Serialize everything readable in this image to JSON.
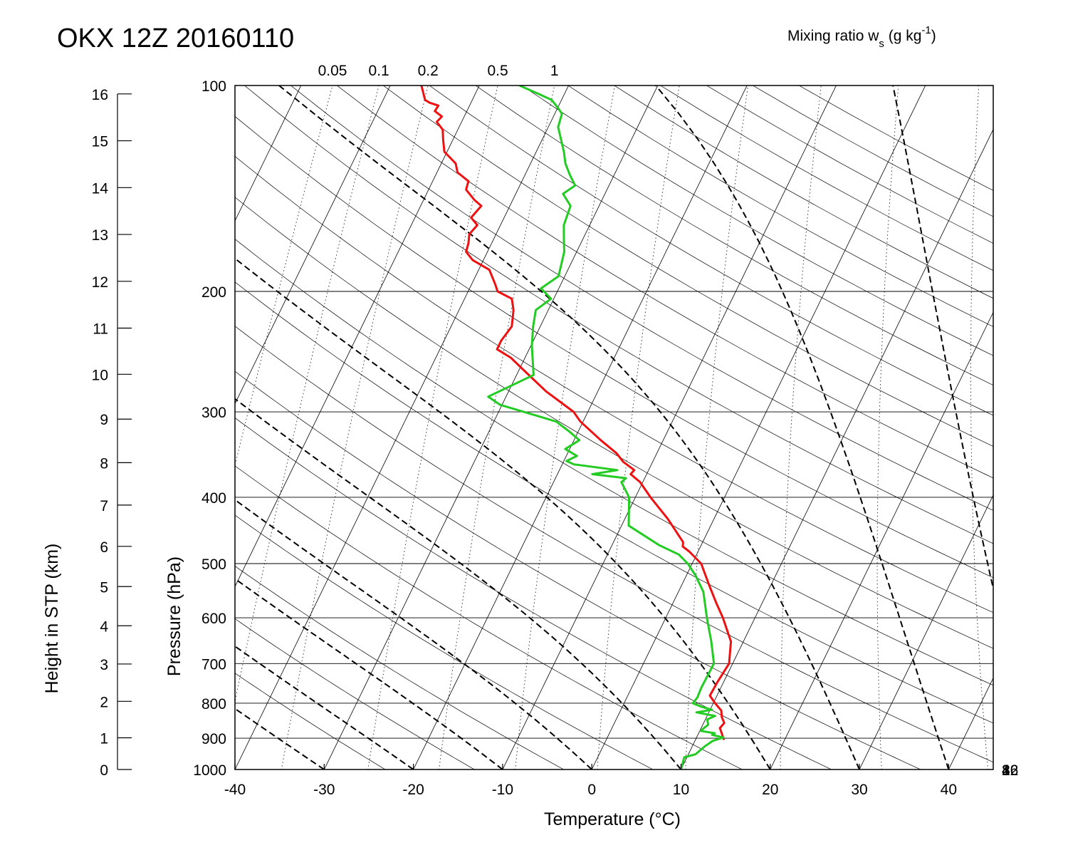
{
  "chart_data": {
    "type": "line",
    "chart_kind": "skew-T log-p diagram",
    "title": "OKX 12Z 20160110",
    "xlabel": "Temperature (°C)",
    "ylabel": "Pressure (hPa)",
    "y2label": "Height in STP (km)",
    "mixing_ratio_label_main": "Mixing ratio w",
    "mixing_ratio_label_sub": "s",
    "mixing_ratio_label_units_pre": " (g kg",
    "mixing_ratio_label_units_sup": "-1",
    "mixing_ratio_label_units_post": ")",
    "xlim": [
      -40,
      45
    ],
    "ylim": [
      1000,
      100
    ],
    "yscale": "log",
    "skew_degC_per_decade_log_p": 37.4,
    "x_ticks": [
      -40,
      -30,
      -20,
      -10,
      0,
      10,
      20,
      30,
      40
    ],
    "x_tick_labels": [
      "-40",
      "-30",
      "-20",
      "-10",
      "0",
      "10",
      "20",
      "30",
      "40"
    ],
    "p_ticks": [
      1000,
      900,
      800,
      700,
      600,
      500,
      400,
      300,
      200,
      100
    ],
    "p_tick_labels": [
      "1000",
      "900",
      "800",
      "700",
      "600",
      "500",
      "400",
      "300",
      "200",
      "100"
    ],
    "height_ticks_km": [
      0,
      1,
      2,
      3,
      4,
      5,
      6,
      7,
      8,
      9,
      10,
      11,
      12,
      13,
      14,
      15,
      16
    ],
    "height_tick_labels": [
      "0",
      "1",
      "2",
      "3",
      "4",
      "5",
      "6",
      "7",
      "8",
      "9",
      "10",
      "11",
      "12",
      "13",
      "14",
      "15",
      "16"
    ],
    "mixing_ratio_top_labels": [
      {
        "label": "0.05",
        "value": 0.05
      },
      {
        "label": "0.1",
        "value": 0.1
      },
      {
        "label": "0.2",
        "value": 0.2
      },
      {
        "label": "0.5",
        "value": 0.5
      },
      {
        "label": "1",
        "value": 1
      }
    ],
    "mixing_ratio_right_labels": [
      {
        "label": "2",
        "value": 2
      },
      {
        "label": "4",
        "value": 4
      },
      {
        "label": "8",
        "value": 8
      },
      {
        "label": "16",
        "value": 16
      },
      {
        "label": "32",
        "value": 32
      }
    ],
    "mixing_ratio_lines_g_per_kg": [
      0.05,
      0.1,
      0.2,
      0.5,
      1,
      2,
      4,
      8,
      16,
      32,
      64
    ],
    "isotherms_degC": [
      -130,
      -120,
      -110,
      -100,
      -90,
      -80,
      -70,
      -60,
      -50,
      -40,
      -30,
      -20,
      -10,
      0,
      10,
      20,
      30,
      40
    ],
    "dry_adiabats_theta_K": [
      250,
      260,
      270,
      280,
      290,
      300,
      310,
      320,
      330,
      340,
      350,
      360,
      370,
      380,
      390,
      400,
      410,
      420,
      430,
      440,
      450,
      460,
      470,
      480,
      490,
      500
    ],
    "moist_adiabats_start_degC_at_1000hPa": [
      -40,
      -30,
      -20,
      -10,
      0,
      10,
      20,
      30,
      40,
      50
    ],
    "grid": true,
    "series": [
      {
        "role": "temperature",
        "color": "#ee1111",
        "points": [
          {
            "p": 905,
            "t": 13.2
          },
          {
            "p": 870,
            "t": 12.1
          },
          {
            "p": 855,
            "t": 12.3
          },
          {
            "p": 838,
            "t": 11.7
          },
          {
            "p": 820,
            "t": 11.3
          },
          {
            "p": 800,
            "t": 10.2
          },
          {
            "p": 780,
            "t": 9.2
          },
          {
            "p": 745,
            "t": 9.3
          },
          {
            "p": 700,
            "t": 9.6
          },
          {
            "p": 650,
            "t": 8.6
          },
          {
            "p": 600,
            "t": 6.4
          },
          {
            "p": 570,
            "t": 4.8
          },
          {
            "p": 540,
            "t": 3.2
          },
          {
            "p": 500,
            "t": 1.0
          },
          {
            "p": 480,
            "t": -1.0
          },
          {
            "p": 472,
            "t": -2.0
          },
          {
            "p": 465,
            "t": -2.2
          },
          {
            "p": 430,
            "t": -5.2
          },
          {
            "p": 400,
            "t": -8.3
          },
          {
            "p": 380,
            "t": -10.3
          },
          {
            "p": 370,
            "t": -11.8
          },
          {
            "p": 365,
            "t": -11.6
          },
          {
            "p": 355,
            "t": -13.3
          },
          {
            "p": 345,
            "t": -14.5
          },
          {
            "p": 330,
            "t": -17.0
          },
          {
            "p": 310,
            "t": -20.3
          },
          {
            "p": 300,
            "t": -21.6
          },
          {
            "p": 280,
            "t": -25.8
          },
          {
            "p": 260,
            "t": -29.6
          },
          {
            "p": 250,
            "t": -31.6
          },
          {
            "p": 243,
            "t": -33.6
          },
          {
            "p": 236,
            "t": -33.6
          },
          {
            "p": 225,
            "t": -33.2
          },
          {
            "p": 213,
            "t": -33.9
          },
          {
            "p": 205,
            "t": -34.7
          },
          {
            "p": 200,
            "t": -36.7
          },
          {
            "p": 195,
            "t": -37.4
          },
          {
            "p": 186,
            "t": -38.8
          },
          {
            "p": 180,
            "t": -41.2
          },
          {
            "p": 175,
            "t": -42.4
          },
          {
            "p": 170,
            "t": -42.6
          },
          {
            "p": 165,
            "t": -43.0
          },
          {
            "p": 160,
            "t": -42.6
          },
          {
            "p": 156,
            "t": -43.7
          },
          {
            "p": 150,
            "t": -43.2
          },
          {
            "p": 147,
            "t": -44.3
          },
          {
            "p": 142,
            "t": -45.8
          },
          {
            "p": 138,
            "t": -46.0
          },
          {
            "p": 134,
            "t": -47.7
          },
          {
            "p": 130,
            "t": -48.4
          },
          {
            "p": 125,
            "t": -50.3
          },
          {
            "p": 120,
            "t": -51.1
          },
          {
            "p": 116,
            "t": -51.7
          },
          {
            "p": 113,
            "t": -52.8
          },
          {
            "p": 111,
            "t": -52.5
          },
          {
            "p": 109,
            "t": -53.6
          },
          {
            "p": 107,
            "t": -53.5
          },
          {
            "p": 106,
            "t": -54.6
          },
          {
            "p": 105,
            "t": -55.3
          },
          {
            "p": 100,
            "t": -56.5
          }
        ]
      },
      {
        "role": "dewpoint",
        "color": "#22cc22",
        "points": [
          {
            "p": 1000,
            "t": 10.0
          },
          {
            "p": 960,
            "t": 9.7
          },
          {
            "p": 950,
            "t": 10.8
          },
          {
            "p": 925,
            "t": 11.4
          },
          {
            "p": 908,
            "t": 12.0
          },
          {
            "p": 898,
            "t": 13.0
          },
          {
            "p": 890,
            "t": 11.6
          },
          {
            "p": 885,
            "t": 11.8
          },
          {
            "p": 878,
            "t": 10.1
          },
          {
            "p": 870,
            "t": 10.3
          },
          {
            "p": 860,
            "t": 10.6
          },
          {
            "p": 845,
            "t": 10.2
          },
          {
            "p": 835,
            "t": 10.9
          },
          {
            "p": 825,
            "t": 8.6
          },
          {
            "p": 818,
            "t": 10.2
          },
          {
            "p": 810,
            "t": 8.9
          },
          {
            "p": 800,
            "t": 7.7
          },
          {
            "p": 785,
            "t": 7.9
          },
          {
            "p": 760,
            "t": 7.8
          },
          {
            "p": 700,
            "t": 7.9
          },
          {
            "p": 650,
            "t": 6.4
          },
          {
            "p": 600,
            "t": 4.6
          },
          {
            "p": 550,
            "t": 2.8
          },
          {
            "p": 520,
            "t": 1.0
          },
          {
            "p": 500,
            "t": -0.5
          },
          {
            "p": 485,
            "t": -2.0
          },
          {
            "p": 470,
            "t": -4.7
          },
          {
            "p": 440,
            "t": -9.2
          },
          {
            "p": 400,
            "t": -10.7
          },
          {
            "p": 380,
            "t": -12.4
          },
          {
            "p": 375,
            "t": -12.1
          },
          {
            "p": 370,
            "t": -16.1
          },
          {
            "p": 365,
            "t": -13.5
          },
          {
            "p": 358,
            "t": -18.7
          },
          {
            "p": 354,
            "t": -19.7
          },
          {
            "p": 348,
            "t": -18.8
          },
          {
            "p": 340,
            "t": -20.5
          },
          {
            "p": 330,
            "t": -19.4
          },
          {
            "p": 320,
            "t": -21.1
          },
          {
            "p": 310,
            "t": -23.0
          },
          {
            "p": 293,
            "t": -30.2
          },
          {
            "p": 285,
            "t": -32.0
          },
          {
            "p": 265,
            "t": -28.1
          },
          {
            "p": 240,
            "t": -29.9
          },
          {
            "p": 225,
            "t": -30.8
          },
          {
            "p": 213,
            "t": -31.4
          },
          {
            "p": 205,
            "t": -30.3
          },
          {
            "p": 200,
            "t": -31.5
          },
          {
            "p": 198,
            "t": -32.0
          },
          {
            "p": 190,
            "t": -30.7
          },
          {
            "p": 175,
            "t": -31.4
          },
          {
            "p": 170,
            "t": -31.9
          },
          {
            "p": 160,
            "t": -32.9
          },
          {
            "p": 150,
            "t": -33.2
          },
          {
            "p": 144,
            "t": -34.7
          },
          {
            "p": 140,
            "t": -33.8
          },
          {
            "p": 135,
            "t": -35.0
          },
          {
            "p": 130,
            "t": -36.1
          },
          {
            "p": 125,
            "t": -36.9
          },
          {
            "p": 115,
            "t": -38.9
          },
          {
            "p": 110,
            "t": -39.2
          },
          {
            "p": 108,
            "t": -39.9
          },
          {
            "p": 105,
            "t": -41.1
          },
          {
            "p": 103,
            "t": -42.8
          },
          {
            "p": 100,
            "t": -45.5
          }
        ]
      }
    ]
  }
}
